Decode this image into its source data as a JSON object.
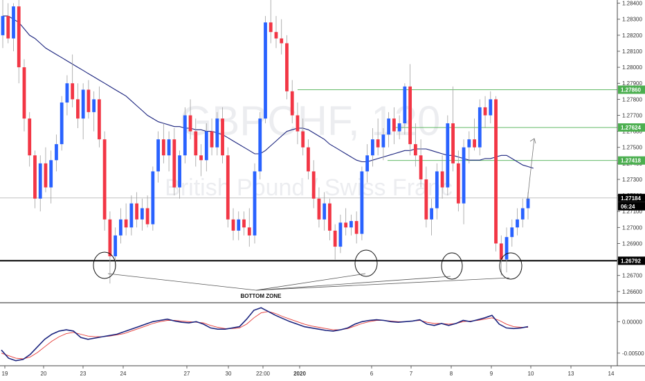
{
  "chart_data": [
    {
      "type": "candlestick",
      "watermark": {
        "symbol": "GBPCHF, 120",
        "description": "British Pound / Swiss Franc"
      },
      "y_ticks": [
        1.266,
        1.267,
        1.268,
        1.269,
        1.27,
        1.271,
        1.272,
        1.273,
        1.274,
        1.275,
        1.276,
        1.277,
        1.278,
        1.279,
        1.28,
        1.281,
        1.282,
        1.283,
        1.284
      ],
      "ylim": [
        1.2653,
        1.2842
      ],
      "x_ticks": [
        "19",
        "20",
        "23",
        "24",
        "27",
        "30",
        "22:00",
        "2020",
        "6",
        "7",
        "8",
        "9",
        "10",
        "13",
        "14"
      ],
      "price_levels": [
        {
          "value": "1.27860",
          "color": "#4caf50"
        },
        {
          "value": "1.27624",
          "color": "#4caf50"
        },
        {
          "value": "1.27418",
          "color": "#4caf50"
        },
        {
          "value": "1.26792",
          "color": "#000000"
        }
      ],
      "last_price": {
        "value": "1.27184",
        "countdown": "06:24"
      },
      "annotation": "BOTTOM ZONE",
      "colors": {
        "up": "#2962ff",
        "down": "#f23645",
        "ma": "#1a237e"
      },
      "candles": [
        {
          "o": 1.282,
          "h": 1.2843,
          "l": 1.2812,
          "c": 1.2832
        },
        {
          "o": 1.2832,
          "h": 1.284,
          "l": 1.2815,
          "c": 1.2818
        },
        {
          "o": 1.2818,
          "h": 1.284,
          "l": 1.281,
          "c": 1.2838
        },
        {
          "o": 1.2838,
          "h": 1.2842,
          "l": 1.279,
          "c": 1.28
        },
        {
          "o": 1.28,
          "h": 1.2805,
          "l": 1.276,
          "c": 1.2768
        },
        {
          "o": 1.2768,
          "h": 1.2772,
          "l": 1.2738,
          "c": 1.2745
        },
        {
          "o": 1.2745,
          "h": 1.2748,
          "l": 1.2712,
          "c": 1.2718
        },
        {
          "o": 1.2718,
          "h": 1.2745,
          "l": 1.271,
          "c": 1.274
        },
        {
          "o": 1.274,
          "h": 1.275,
          "l": 1.2722,
          "c": 1.2725
        },
        {
          "o": 1.2725,
          "h": 1.2748,
          "l": 1.2715,
          "c": 1.2742
        },
        {
          "o": 1.2742,
          "h": 1.2758,
          "l": 1.2735,
          "c": 1.2752
        },
        {
          "o": 1.2752,
          "h": 1.2782,
          "l": 1.2748,
          "c": 1.2778
        },
        {
          "o": 1.2778,
          "h": 1.2795,
          "l": 1.277,
          "c": 1.279
        },
        {
          "o": 1.279,
          "h": 1.2808,
          "l": 1.2775,
          "c": 1.278
        },
        {
          "o": 1.278,
          "h": 1.279,
          "l": 1.2762,
          "c": 1.2768
        },
        {
          "o": 1.2768,
          "h": 1.279,
          "l": 1.2755,
          "c": 1.2786
        },
        {
          "o": 1.2786,
          "h": 1.2792,
          "l": 1.2768,
          "c": 1.2772
        },
        {
          "o": 1.2772,
          "h": 1.2785,
          "l": 1.276,
          "c": 1.278
        },
        {
          "o": 1.278,
          "h": 1.2788,
          "l": 1.275,
          "c": 1.2755
        },
        {
          "o": 1.2755,
          "h": 1.276,
          "l": 1.2698,
          "c": 1.2705
        },
        {
          "o": 1.2705,
          "h": 1.271,
          "l": 1.2665,
          "c": 1.2682
        },
        {
          "o": 1.2682,
          "h": 1.27,
          "l": 1.2675,
          "c": 1.2695
        },
        {
          "o": 1.2695,
          "h": 1.2712,
          "l": 1.269,
          "c": 1.2705
        },
        {
          "o": 1.2705,
          "h": 1.2715,
          "l": 1.2695,
          "c": 1.27
        },
        {
          "o": 1.27,
          "h": 1.272,
          "l": 1.2695,
          "c": 1.2715
        },
        {
          "o": 1.2715,
          "h": 1.2722,
          "l": 1.27,
          "c": 1.2705
        },
        {
          "o": 1.2705,
          "h": 1.2718,
          "l": 1.2698,
          "c": 1.2712
        },
        {
          "o": 1.2712,
          "h": 1.272,
          "l": 1.27,
          "c": 1.2702
        },
        {
          "o": 1.2702,
          "h": 1.2738,
          "l": 1.2698,
          "c": 1.2735
        },
        {
          "o": 1.2735,
          "h": 1.276,
          "l": 1.2728,
          "c": 1.2755
        },
        {
          "o": 1.2755,
          "h": 1.2765,
          "l": 1.274,
          "c": 1.2745
        },
        {
          "o": 1.2745,
          "h": 1.276,
          "l": 1.2735,
          "c": 1.2755
        },
        {
          "o": 1.2755,
          "h": 1.2762,
          "l": 1.272,
          "c": 1.2725
        },
        {
          "o": 1.2725,
          "h": 1.2748,
          "l": 1.2718,
          "c": 1.2745
        },
        {
          "o": 1.2745,
          "h": 1.2775,
          "l": 1.274,
          "c": 1.277
        },
        {
          "o": 1.277,
          "h": 1.278,
          "l": 1.2755,
          "c": 1.276
        },
        {
          "o": 1.276,
          "h": 1.2768,
          "l": 1.2738,
          "c": 1.2745
        },
        {
          "o": 1.2745,
          "h": 1.2752,
          "l": 1.2732,
          "c": 1.2742
        },
        {
          "o": 1.2742,
          "h": 1.2765,
          "l": 1.2735,
          "c": 1.276
        },
        {
          "o": 1.276,
          "h": 1.2768,
          "l": 1.2745,
          "c": 1.275
        },
        {
          "o": 1.275,
          "h": 1.2772,
          "l": 1.2745,
          "c": 1.2768
        },
        {
          "o": 1.2768,
          "h": 1.2775,
          "l": 1.274,
          "c": 1.2745
        },
        {
          "o": 1.2745,
          "h": 1.275,
          "l": 1.27,
          "c": 1.2705
        },
        {
          "o": 1.2705,
          "h": 1.2712,
          "l": 1.2692,
          "c": 1.2698
        },
        {
          "o": 1.2698,
          "h": 1.271,
          "l": 1.2692,
          "c": 1.2705
        },
        {
          "o": 1.2705,
          "h": 1.271,
          "l": 1.2695,
          "c": 1.27
        },
        {
          "o": 1.27,
          "h": 1.2712,
          "l": 1.2688,
          "c": 1.2695
        },
        {
          "o": 1.2695,
          "h": 1.274,
          "l": 1.269,
          "c": 1.2735
        },
        {
          "o": 1.2735,
          "h": 1.2772,
          "l": 1.273,
          "c": 1.2768
        },
        {
          "o": 1.2768,
          "h": 1.2832,
          "l": 1.2765,
          "c": 1.2828
        },
        {
          "o": 1.2828,
          "h": 1.2842,
          "l": 1.2815,
          "c": 1.2822
        },
        {
          "o": 1.2822,
          "h": 1.2832,
          "l": 1.2812,
          "c": 1.2818
        },
        {
          "o": 1.2818,
          "h": 1.283,
          "l": 1.2808,
          "c": 1.2815
        },
        {
          "o": 1.2815,
          "h": 1.282,
          "l": 1.278,
          "c": 1.2785
        },
        {
          "o": 1.2785,
          "h": 1.2792,
          "l": 1.2765,
          "c": 1.277
        },
        {
          "o": 1.277,
          "h": 1.2778,
          "l": 1.2752,
          "c": 1.276
        },
        {
          "o": 1.276,
          "h": 1.2768,
          "l": 1.2745,
          "c": 1.275
        },
        {
          "o": 1.275,
          "h": 1.2755,
          "l": 1.273,
          "c": 1.2735
        },
        {
          "o": 1.2735,
          "h": 1.2742,
          "l": 1.2712,
          "c": 1.2718
        },
        {
          "o": 1.2718,
          "h": 1.2725,
          "l": 1.27,
          "c": 1.2705
        },
        {
          "o": 1.2705,
          "h": 1.2722,
          "l": 1.2698,
          "c": 1.2715
        },
        {
          "o": 1.2715,
          "h": 1.2718,
          "l": 1.2692,
          "c": 1.2698
        },
        {
          "o": 1.2698,
          "h": 1.2702,
          "l": 1.268,
          "c": 1.2688
        },
        {
          "o": 1.2688,
          "h": 1.2708,
          "l": 1.2684,
          "c": 1.2703
        },
        {
          "o": 1.2703,
          "h": 1.2712,
          "l": 1.2695,
          "c": 1.27
        },
        {
          "o": 1.27,
          "h": 1.2708,
          "l": 1.2695,
          "c": 1.2704
        },
        {
          "o": 1.2704,
          "h": 1.271,
          "l": 1.269,
          "c": 1.2696
        },
        {
          "o": 1.2696,
          "h": 1.2738,
          "l": 1.2692,
          "c": 1.2735
        },
        {
          "o": 1.2735,
          "h": 1.2752,
          "l": 1.2728,
          "c": 1.2745
        },
        {
          "o": 1.2745,
          "h": 1.2762,
          "l": 1.2738,
          "c": 1.2755
        },
        {
          "o": 1.2755,
          "h": 1.2768,
          "l": 1.2745,
          "c": 1.275
        },
        {
          "o": 1.275,
          "h": 1.2762,
          "l": 1.2742,
          "c": 1.2758
        },
        {
          "o": 1.2758,
          "h": 1.2772,
          "l": 1.275,
          "c": 1.2768
        },
        {
          "o": 1.2768,
          "h": 1.2775,
          "l": 1.2752,
          "c": 1.276
        },
        {
          "o": 1.276,
          "h": 1.277,
          "l": 1.2755,
          "c": 1.2765
        },
        {
          "o": 1.2765,
          "h": 1.279,
          "l": 1.2758,
          "c": 1.2788
        },
        {
          "o": 1.2788,
          "h": 1.2802,
          "l": 1.2745,
          "c": 1.2752
        },
        {
          "o": 1.2752,
          "h": 1.2765,
          "l": 1.2738,
          "c": 1.2745
        },
        {
          "o": 1.2745,
          "h": 1.2755,
          "l": 1.2725,
          "c": 1.273
        },
        {
          "o": 1.273,
          "h": 1.2738,
          "l": 1.27,
          "c": 1.2705
        },
        {
          "o": 1.2705,
          "h": 1.2718,
          "l": 1.2695,
          "c": 1.2712
        },
        {
          "o": 1.2712,
          "h": 1.274,
          "l": 1.2705,
          "c": 1.2735
        },
        {
          "o": 1.2735,
          "h": 1.2745,
          "l": 1.2718,
          "c": 1.2725
        },
        {
          "o": 1.2725,
          "h": 1.277,
          "l": 1.272,
          "c": 1.2765
        },
        {
          "o": 1.2765,
          "h": 1.2788,
          "l": 1.2735,
          "c": 1.274
        },
        {
          "o": 1.274,
          "h": 1.2748,
          "l": 1.271,
          "c": 1.2715
        },
        {
          "o": 1.2715,
          "h": 1.2755,
          "l": 1.2702,
          "c": 1.275
        },
        {
          "o": 1.275,
          "h": 1.276,
          "l": 1.274,
          "c": 1.2755
        },
        {
          "o": 1.2755,
          "h": 1.2768,
          "l": 1.2748,
          "c": 1.275
        },
        {
          "o": 1.275,
          "h": 1.278,
          "l": 1.2745,
          "c": 1.2775
        },
        {
          "o": 1.2775,
          "h": 1.2782,
          "l": 1.2762,
          "c": 1.277
        },
        {
          "o": 1.277,
          "h": 1.2785,
          "l": 1.2765,
          "c": 1.278
        },
        {
          "o": 1.278,
          "h": 1.2782,
          "l": 1.2685,
          "c": 1.269
        },
        {
          "o": 1.269,
          "h": 1.2695,
          "l": 1.267,
          "c": 1.268
        },
        {
          "o": 1.268,
          "h": 1.27,
          "l": 1.2672,
          "c": 1.2694
        },
        {
          "o": 1.2694,
          "h": 1.2705,
          "l": 1.2688,
          "c": 1.27
        },
        {
          "o": 1.27,
          "h": 1.2712,
          "l": 1.2695,
          "c": 1.2705
        },
        {
          "o": 1.2705,
          "h": 1.2718,
          "l": 1.27,
          "c": 1.2712
        },
        {
          "o": 1.2712,
          "h": 1.2722,
          "l": 1.2705,
          "c": 1.2718
        }
      ],
      "ma": [
        1.2832,
        1.2832,
        1.283,
        1.2828,
        1.2824,
        1.282,
        1.2818,
        1.2815,
        1.2812,
        1.281,
        1.2808,
        1.2806,
        1.2804,
        1.2802,
        1.28,
        1.2798,
        1.2796,
        1.2794,
        1.2792,
        1.279,
        1.2788,
        1.2786,
        1.2784,
        1.2782,
        1.2779,
        1.2776,
        1.2773,
        1.277,
        1.2768,
        1.2766,
        1.2765,
        1.2764,
        1.2763,
        1.2763,
        1.2762,
        1.2762,
        1.2761,
        1.2761,
        1.276,
        1.276,
        1.2759,
        1.2758,
        1.2756,
        1.2754,
        1.2752,
        1.275,
        1.2748,
        1.2746,
        1.2746,
        1.2748,
        1.2751,
        1.2754,
        1.2757,
        1.276,
        1.2761,
        1.2762,
        1.2762,
        1.2761,
        1.2759,
        1.2757,
        1.2755,
        1.2752,
        1.275,
        1.2748,
        1.2746,
        1.2744,
        1.2742,
        1.2741,
        1.2741,
        1.2742,
        1.2743,
        1.2744,
        1.2745,
        1.2746,
        1.2747,
        1.2748,
        1.2748,
        1.2749,
        1.2749,
        1.2749,
        1.2748,
        1.2747,
        1.2746,
        1.2745,
        1.2745,
        1.2744,
        1.2743,
        1.2742,
        1.2742,
        1.2742,
        1.2743,
        1.2743,
        1.2744,
        1.2745,
        1.2745,
        1.2743,
        1.2741,
        1.2739,
        1.2738,
        1.2737
      ]
    },
    {
      "type": "line",
      "y_ticks": [
        0.0,
        -0.005
      ],
      "y_tick_labels": [
        "0.00000",
        "-0.00500"
      ],
      "ylim": [
        -0.007,
        0.003
      ],
      "series": [
        {
          "color": "#1a237e",
          "values": [
            -0.0045,
            -0.0058,
            -0.0062,
            -0.006,
            -0.0052,
            -0.004,
            -0.0028,
            -0.002,
            -0.0015,
            -0.0013,
            -0.0015,
            -0.0025,
            -0.0028,
            -0.0026,
            -0.0024,
            -0.0022,
            -0.002,
            -0.0016,
            -0.0012,
            -0.0008,
            -0.0004,
            0.0,
            0.0002,
            0.0004,
            0.0001,
            -0.0001,
            -0.0002,
            0.0,
            -0.0004,
            -0.001,
            -0.0012,
            -0.0012,
            -0.001,
            -0.0008,
            0.0004,
            0.0018,
            0.0022,
            0.0016,
            0.001,
            0.0005,
            0.0,
            -0.0004,
            -0.0008,
            -0.001,
            -0.0012,
            -0.0014,
            -0.0015,
            -0.0013,
            -0.001,
            -0.0004,
            0.0,
            0.0002,
            0.0003,
            0.0002,
            0.0,
            -0.0001,
            0.0,
            0.0001,
            0.0003,
            -0.0004,
            -0.0006,
            -0.0003,
            -0.0006,
            -0.0003,
            0.0002,
            0.0,
            0.0003,
            0.0006,
            0.001,
            -0.0004,
            -0.001,
            -0.0011,
            -0.001,
            -0.0008
          ]
        },
        {
          "color": "#e53935",
          "values": [
            -0.005,
            -0.0054,
            -0.0058,
            -0.0059,
            -0.0056,
            -0.0049,
            -0.004,
            -0.0031,
            -0.0024,
            -0.0019,
            -0.0017,
            -0.002,
            -0.0023,
            -0.0024,
            -0.0024,
            -0.0023,
            -0.0021,
            -0.0019,
            -0.0015,
            -0.0011,
            -0.0007,
            -0.0003,
            0.0,
            0.0002,
            0.0002,
            0.0001,
            0.0,
            -0.0001,
            -0.0002,
            -0.0006,
            -0.0009,
            -0.0011,
            -0.0011,
            -0.001,
            -0.0004,
            0.0006,
            0.0014,
            0.0016,
            0.0013,
            0.0008,
            0.0004,
            0.0,
            -0.0004,
            -0.0007,
            -0.0009,
            -0.0011,
            -0.0013,
            -0.0013,
            -0.0011,
            -0.0007,
            -0.0003,
            0.0,
            0.0002,
            0.0002,
            0.0001,
            0.0,
            0.0,
            0.0001,
            0.0002,
            -0.0001,
            -0.0003,
            -0.0003,
            -0.0004,
            -0.0003,
            0.0,
            0.0001,
            0.0002,
            0.0004,
            0.0006,
            0.0002,
            -0.0004,
            -0.0008,
            -0.0009,
            -0.0009
          ]
        }
      ]
    }
  ]
}
